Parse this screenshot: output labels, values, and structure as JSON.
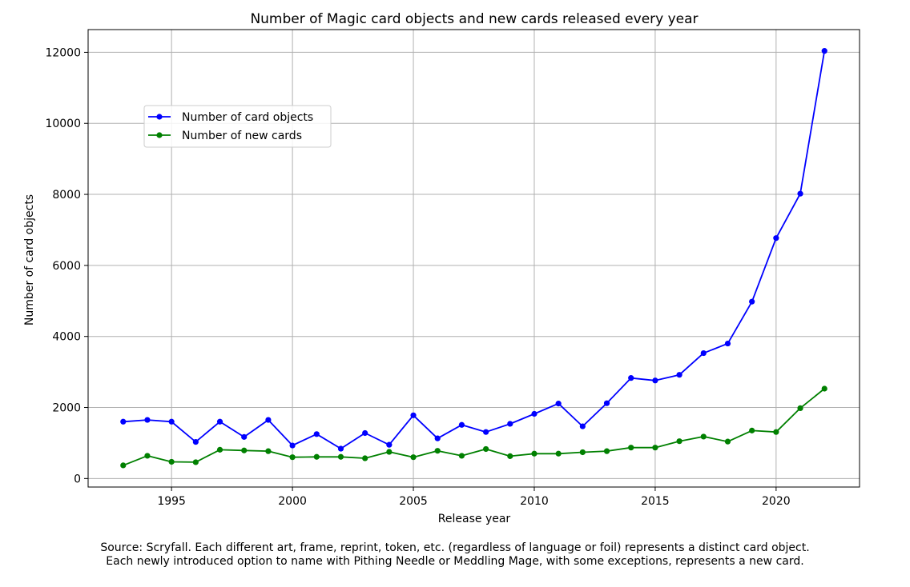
{
  "chart_data": {
    "type": "line",
    "title": "Number of Magic card objects and new cards released every year",
    "xlabel": "Release year",
    "ylabel": "Number of card objects",
    "xlim": [
      1991.55,
      2023.45
    ],
    "ylim": [
      -240,
      12640
    ],
    "x_ticks": [
      1995,
      2000,
      2005,
      2010,
      2015,
      2020
    ],
    "y_ticks": [
      0,
      2000,
      4000,
      6000,
      8000,
      10000,
      12000
    ],
    "grid": true,
    "legend_position": "upper-left",
    "x": [
      1993,
      1994,
      1995,
      1996,
      1997,
      1998,
      1999,
      2000,
      2001,
      2002,
      2003,
      2004,
      2005,
      2006,
      2007,
      2008,
      2009,
      2010,
      2011,
      2012,
      2013,
      2014,
      2015,
      2016,
      2017,
      2018,
      2019,
      2020,
      2021,
      2022
    ],
    "series": [
      {
        "name": "Number of card objects",
        "color": "#0000ff",
        "values": [
          1600,
          1650,
          1600,
          1030,
          1600,
          1170,
          1650,
          930,
          1250,
          840,
          1280,
          950,
          1780,
          1130,
          1510,
          1310,
          1540,
          1820,
          2110,
          1470,
          2120,
          2830,
          2760,
          2920,
          3530,
          3800,
          4980,
          6770,
          8020,
          12040
        ]
      },
      {
        "name": "Number of new cards",
        "color": "#008000",
        "values": [
          370,
          640,
          470,
          460,
          810,
          790,
          770,
          600,
          610,
          610,
          570,
          750,
          600,
          780,
          640,
          830,
          630,
          700,
          700,
          740,
          770,
          870,
          870,
          1050,
          1180,
          1040,
          1350,
          1310,
          1980,
          2530
        ]
      }
    ]
  },
  "caption": {
    "line1": "Source: Scryfall. Each different art, frame, reprint, token, etc. (regardless of language or foil) represents a distinct card object.",
    "line2": "Each newly introduced option to name with Pithing Needle or Meddling Mage, with some exceptions, represents a new card."
  }
}
